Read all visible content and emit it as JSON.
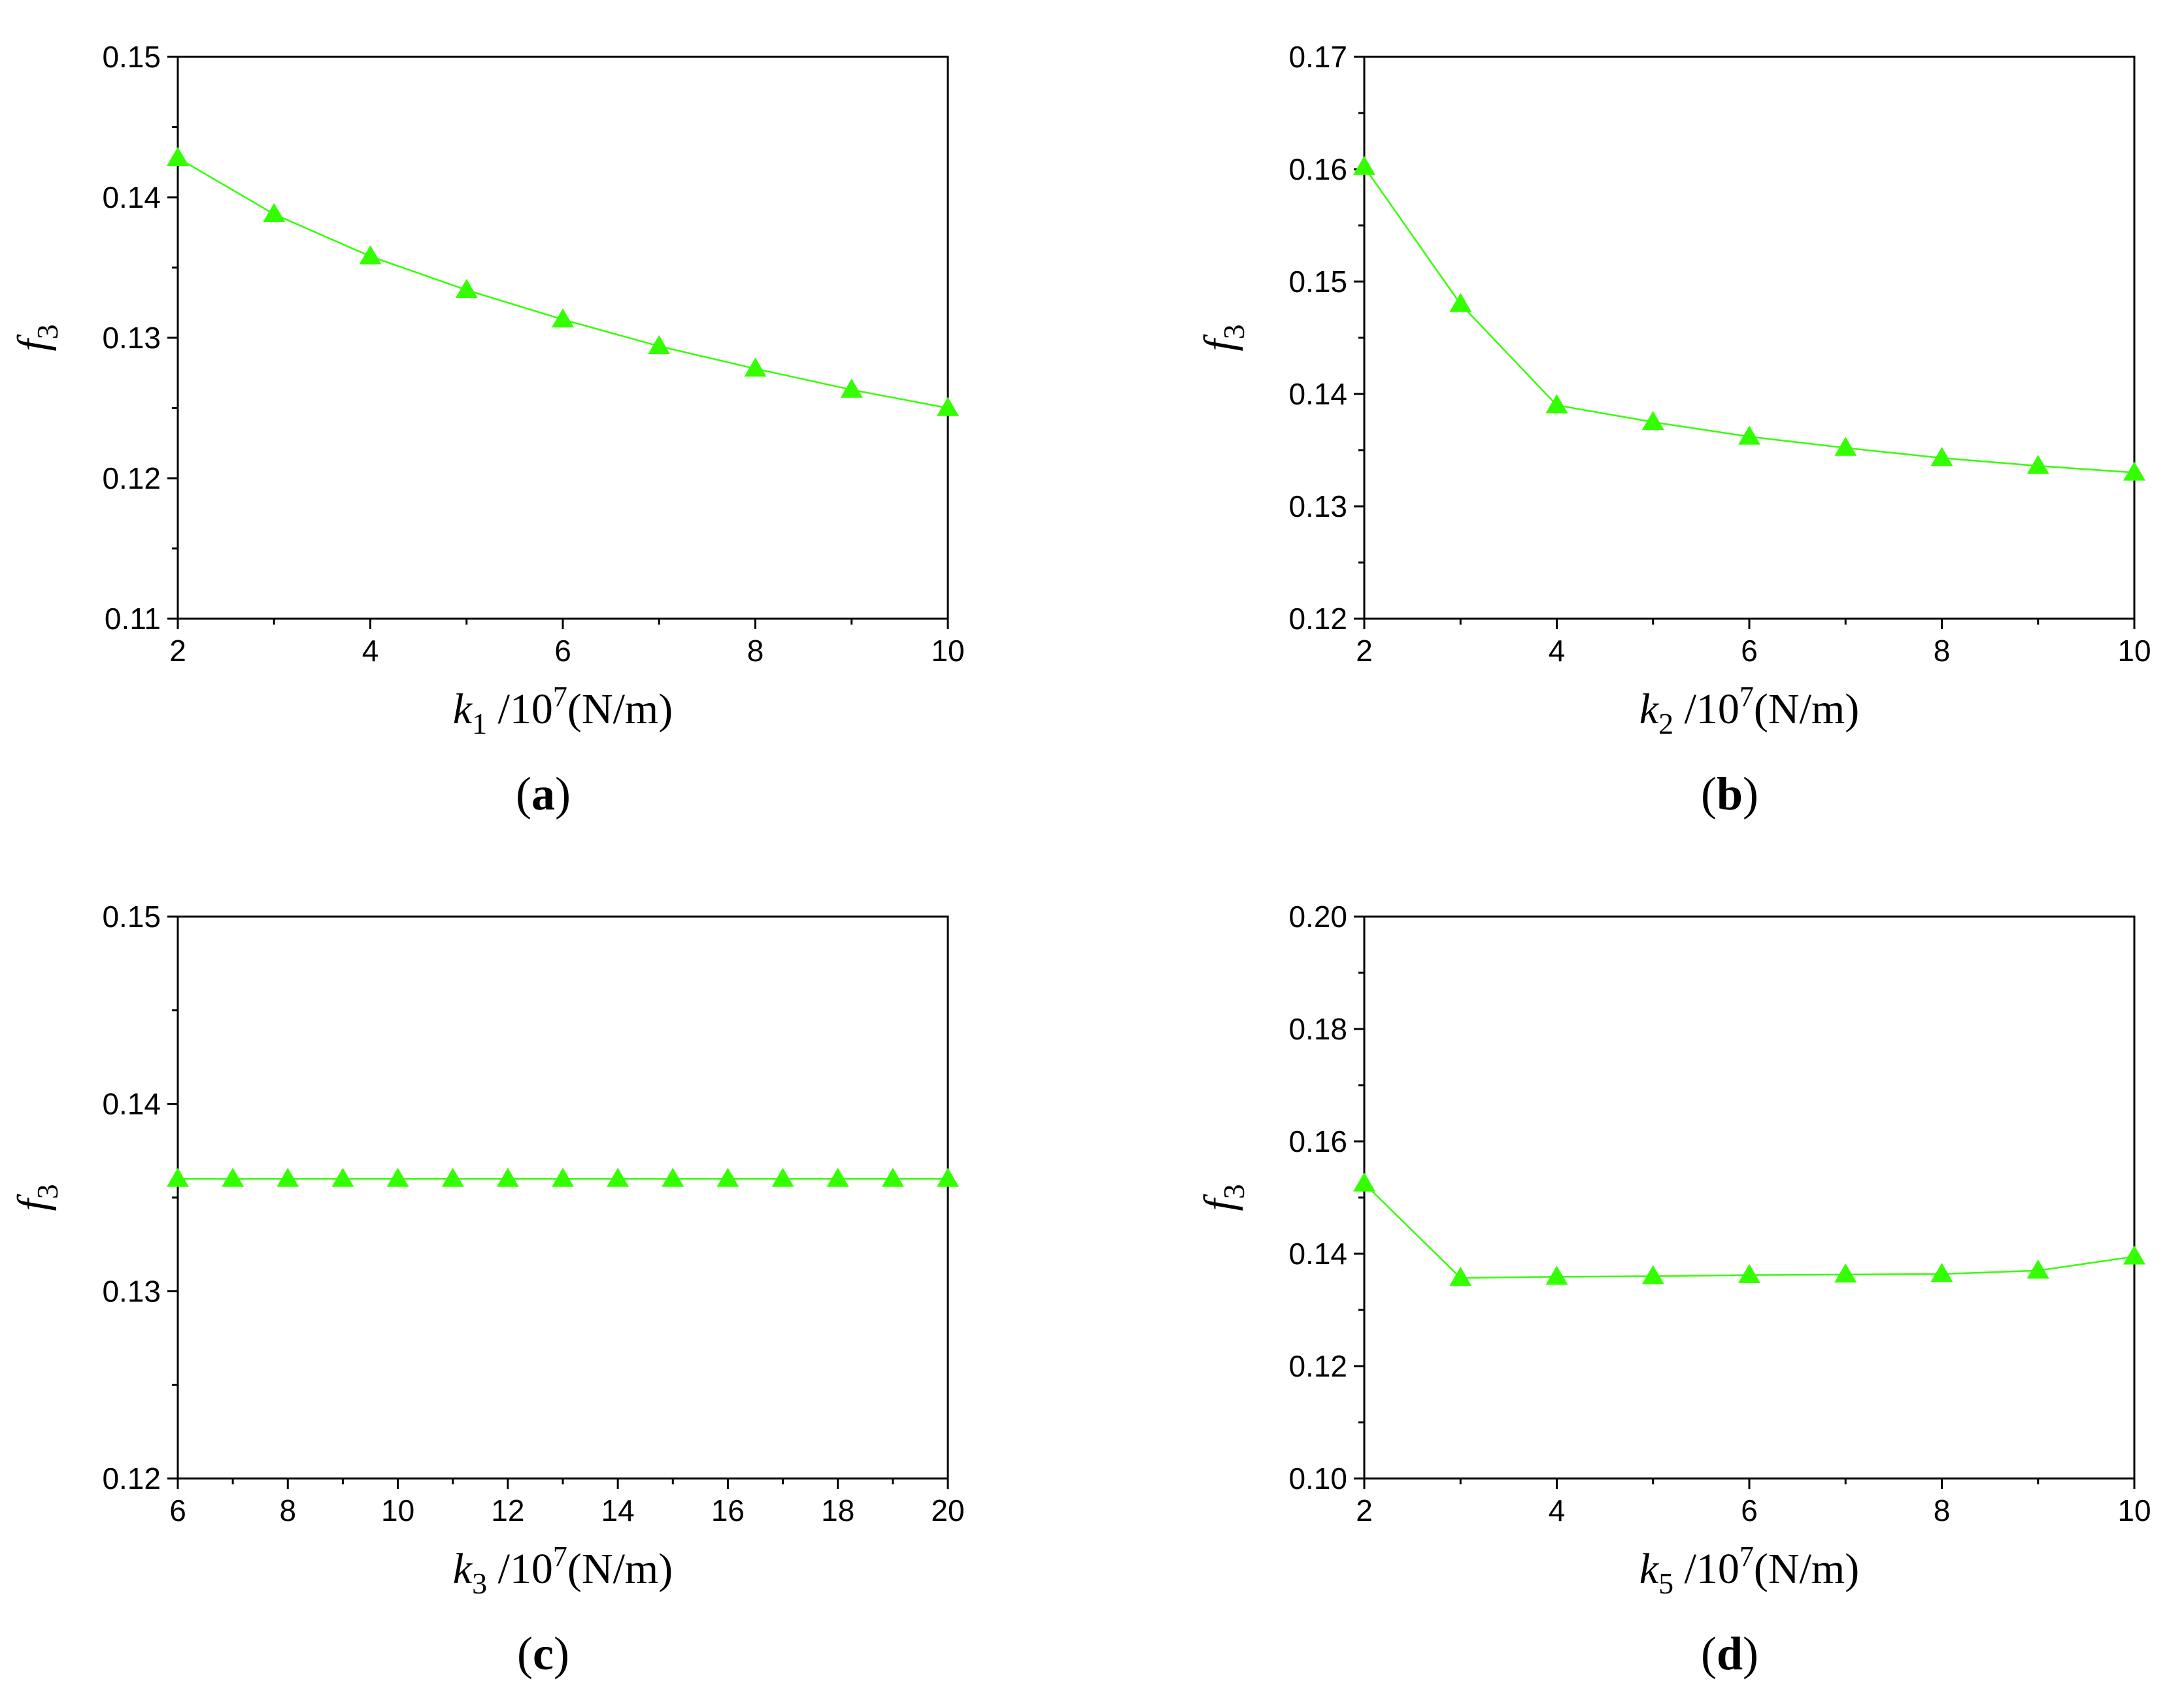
{
  "chart_data": [
    {
      "id": "a",
      "type": "line",
      "panel_label": "a",
      "xlabel": {
        "var": "k",
        "sub": "1",
        "unit_pre": " /10",
        "unit_sup": "7",
        "unit_post": "(N/m)"
      },
      "ylabel": {
        "var": "f",
        "sub": "3"
      },
      "xlim": [
        2,
        10
      ],
      "ylim": [
        0.11,
        0.15
      ],
      "xticks": [
        2,
        4,
        6,
        8,
        10
      ],
      "yticks": [
        "0.11",
        "0.12",
        "0.13",
        "0.14",
        "0.15"
      ],
      "ytick_values": [
        0.11,
        0.12,
        0.13,
        0.14,
        0.15
      ],
      "xminor": [
        3,
        5,
        7,
        9
      ],
      "yminor": [
        0.115,
        0.125,
        0.135,
        0.145
      ],
      "color": "#33ff00",
      "series": [
        {
          "name": "f3",
          "x": [
            2,
            3,
            4,
            5,
            6,
            7,
            8,
            9,
            10
          ],
          "y": [
            0.1428,
            0.1388,
            0.1358,
            0.1334,
            0.1313,
            0.1294,
            0.1278,
            0.1263,
            0.125
          ]
        }
      ]
    },
    {
      "id": "b",
      "type": "line",
      "panel_label": "b",
      "xlabel": {
        "var": "k",
        "sub": "2",
        "unit_pre": " /10",
        "unit_sup": "7",
        "unit_post": "(N/m)"
      },
      "ylabel": {
        "var": "f",
        "sub": "3"
      },
      "xlim": [
        2,
        10
      ],
      "ylim": [
        0.12,
        0.17
      ],
      "xticks": [
        2,
        4,
        6,
        8,
        10
      ],
      "yticks": [
        "0.12",
        "0.13",
        "0.14",
        "0.15",
        "0.16",
        "0.17"
      ],
      "ytick_values": [
        0.12,
        0.13,
        0.14,
        0.15,
        0.16,
        0.17
      ],
      "xminor": [
        3,
        5,
        7,
        9
      ],
      "yminor": [
        0.125,
        0.135,
        0.145,
        0.155,
        0.165
      ],
      "color": "#33ff00",
      "series": [
        {
          "name": "f3",
          "x": [
            2,
            3,
            4,
            5,
            6,
            7,
            8,
            9,
            10
          ],
          "y": [
            0.1602,
            0.148,
            0.139,
            0.1375,
            0.1362,
            0.1352,
            0.1343,
            0.1336,
            0.133
          ]
        }
      ]
    },
    {
      "id": "c",
      "type": "line",
      "panel_label": "c",
      "xlabel": {
        "var": "k",
        "sub": "3",
        "unit_pre": " /10",
        "unit_sup": "7",
        "unit_post": "(N/m)"
      },
      "ylabel": {
        "var": "f",
        "sub": "3"
      },
      "xlim": [
        6,
        20
      ],
      "ylim": [
        0.12,
        0.15
      ],
      "xticks": [
        6,
        8,
        10,
        12,
        14,
        16,
        18,
        20
      ],
      "yticks": [
        "0.12",
        "0.13",
        "0.14",
        "0.15"
      ],
      "ytick_values": [
        0.12,
        0.13,
        0.14,
        0.15
      ],
      "xminor": [
        7,
        9,
        11,
        13,
        15,
        17,
        19
      ],
      "yminor": [
        0.125,
        0.135,
        0.145
      ],
      "color": "#33ff00",
      "series": [
        {
          "name": "f3",
          "x": [
            6,
            7,
            8,
            9,
            10,
            11,
            12,
            13,
            14,
            15,
            16,
            17,
            18,
            19,
            20
          ],
          "y": [
            0.136,
            0.136,
            0.136,
            0.136,
            0.136,
            0.136,
            0.136,
            0.136,
            0.136,
            0.136,
            0.136,
            0.136,
            0.136,
            0.136,
            0.136
          ]
        }
      ]
    },
    {
      "id": "d",
      "type": "line",
      "panel_label": "d",
      "xlabel": {
        "var": "k",
        "sub": "5",
        "unit_pre": " /10",
        "unit_sup": "7",
        "unit_post": "(N/m)"
      },
      "ylabel": {
        "var": "f",
        "sub": "3"
      },
      "xlim": [
        2,
        10
      ],
      "ylim": [
        0.1,
        0.2
      ],
      "xticks": [
        2,
        4,
        6,
        8,
        10
      ],
      "yticks": [
        "0.10",
        "0.12",
        "0.14",
        "0.16",
        "0.18",
        "0.20"
      ],
      "ytick_values": [
        0.1,
        0.12,
        0.14,
        0.16,
        0.18,
        0.2
      ],
      "xminor": [
        3,
        5,
        7,
        9
      ],
      "yminor": [
        0.11,
        0.13,
        0.15,
        0.17,
        0.19
      ],
      "color": "#33ff00",
      "series": [
        {
          "name": "f3",
          "x": [
            2,
            3,
            4,
            5,
            6,
            7,
            8,
            9,
            10
          ],
          "y": [
            0.1525,
            0.1357,
            0.1359,
            0.136,
            0.1362,
            0.1363,
            0.1364,
            0.137,
            0.1395
          ]
        }
      ]
    }
  ]
}
